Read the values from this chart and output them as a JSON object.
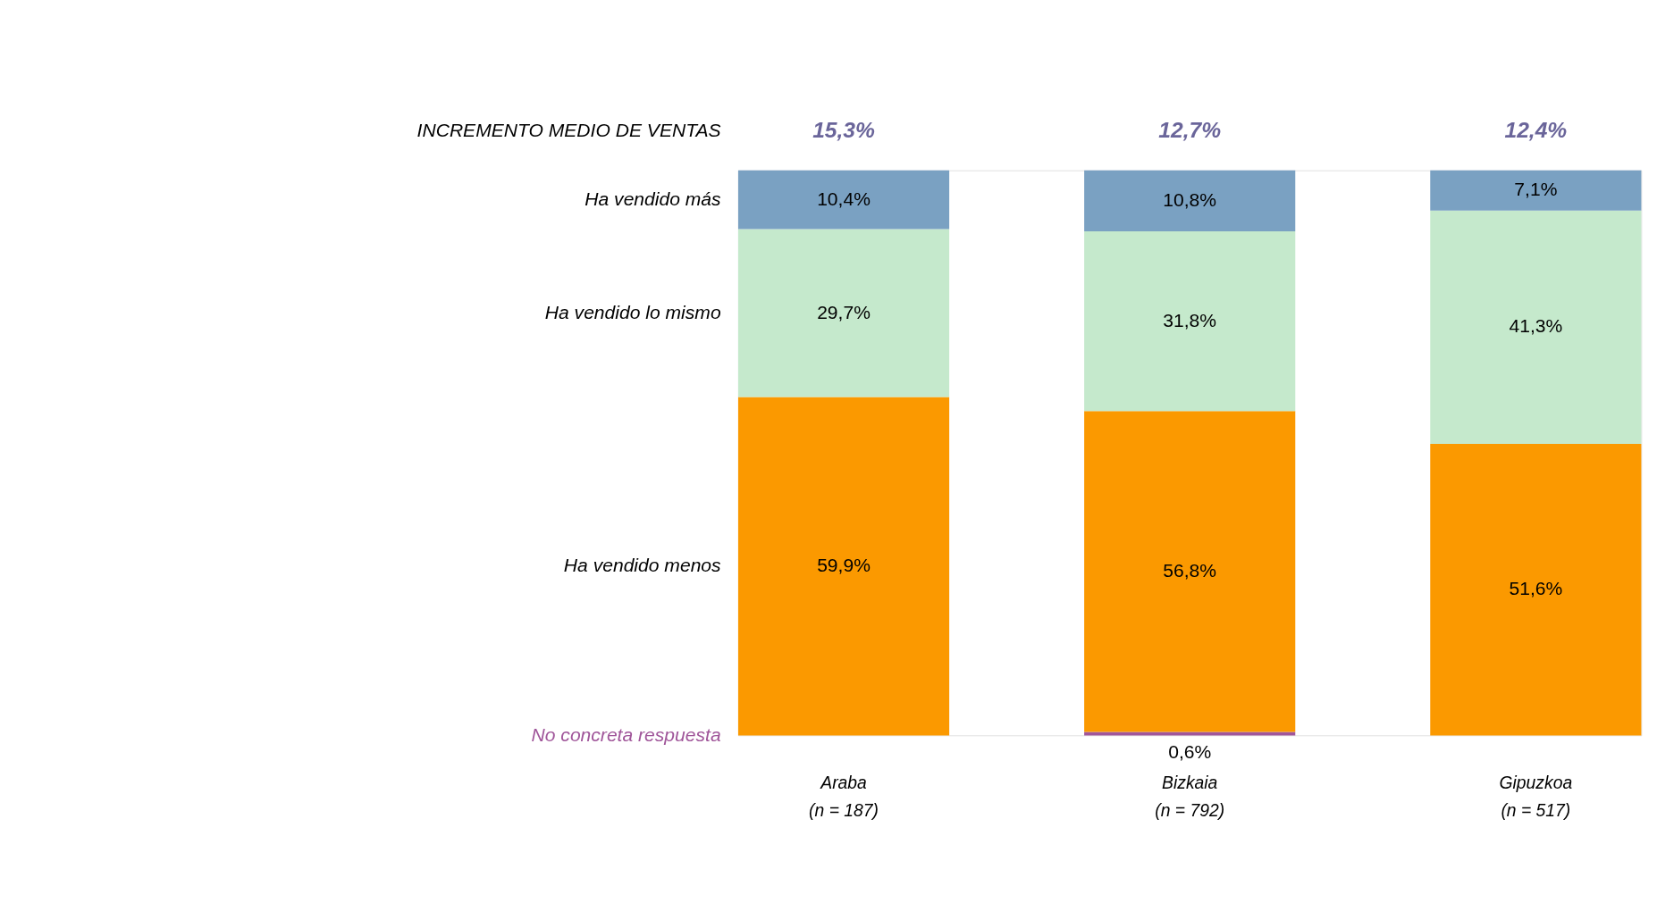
{
  "chart_data": {
    "type": "bar",
    "stacked": true,
    "categories": [
      "Araba\n(n = 187)",
      "Bizkaia\n(n = 792)",
      "Gipuzkoa\n(n = 517)"
    ],
    "ylim": [
      0,
      100
    ],
    "series": [
      {
        "name": "No concreta respuesta",
        "color": "#a0569a",
        "values": [
          null,
          0.6,
          null
        ],
        "value_labels": [
          null,
          "0,6%",
          null
        ]
      },
      {
        "name": "Ha vendido menos",
        "color": "#fb9900",
        "values": [
          59.9,
          56.8,
          51.6
        ],
        "value_labels": [
          "59,9%",
          "56,8%",
          "51,6%"
        ]
      },
      {
        "name": "Ha vendido lo mismo",
        "color": "#c5e9cc",
        "values": [
          29.7,
          31.8,
          41.3
        ],
        "value_labels": [
          "29,7%",
          "31,8%",
          "41,3%"
        ]
      },
      {
        "name": "Ha vendido más",
        "color": "#7aa1c2",
        "values": [
          10.4,
          10.8,
          7.1
        ],
        "value_labels": [
          "10,4%",
          "10,8%",
          "7,1%"
        ]
      }
    ],
    "legend": "left",
    "annotations": [
      "INCREMENTO MEDIO DE VENTAS",
      "15,3%",
      "12,7%",
      "12,4%"
    ]
  }
}
